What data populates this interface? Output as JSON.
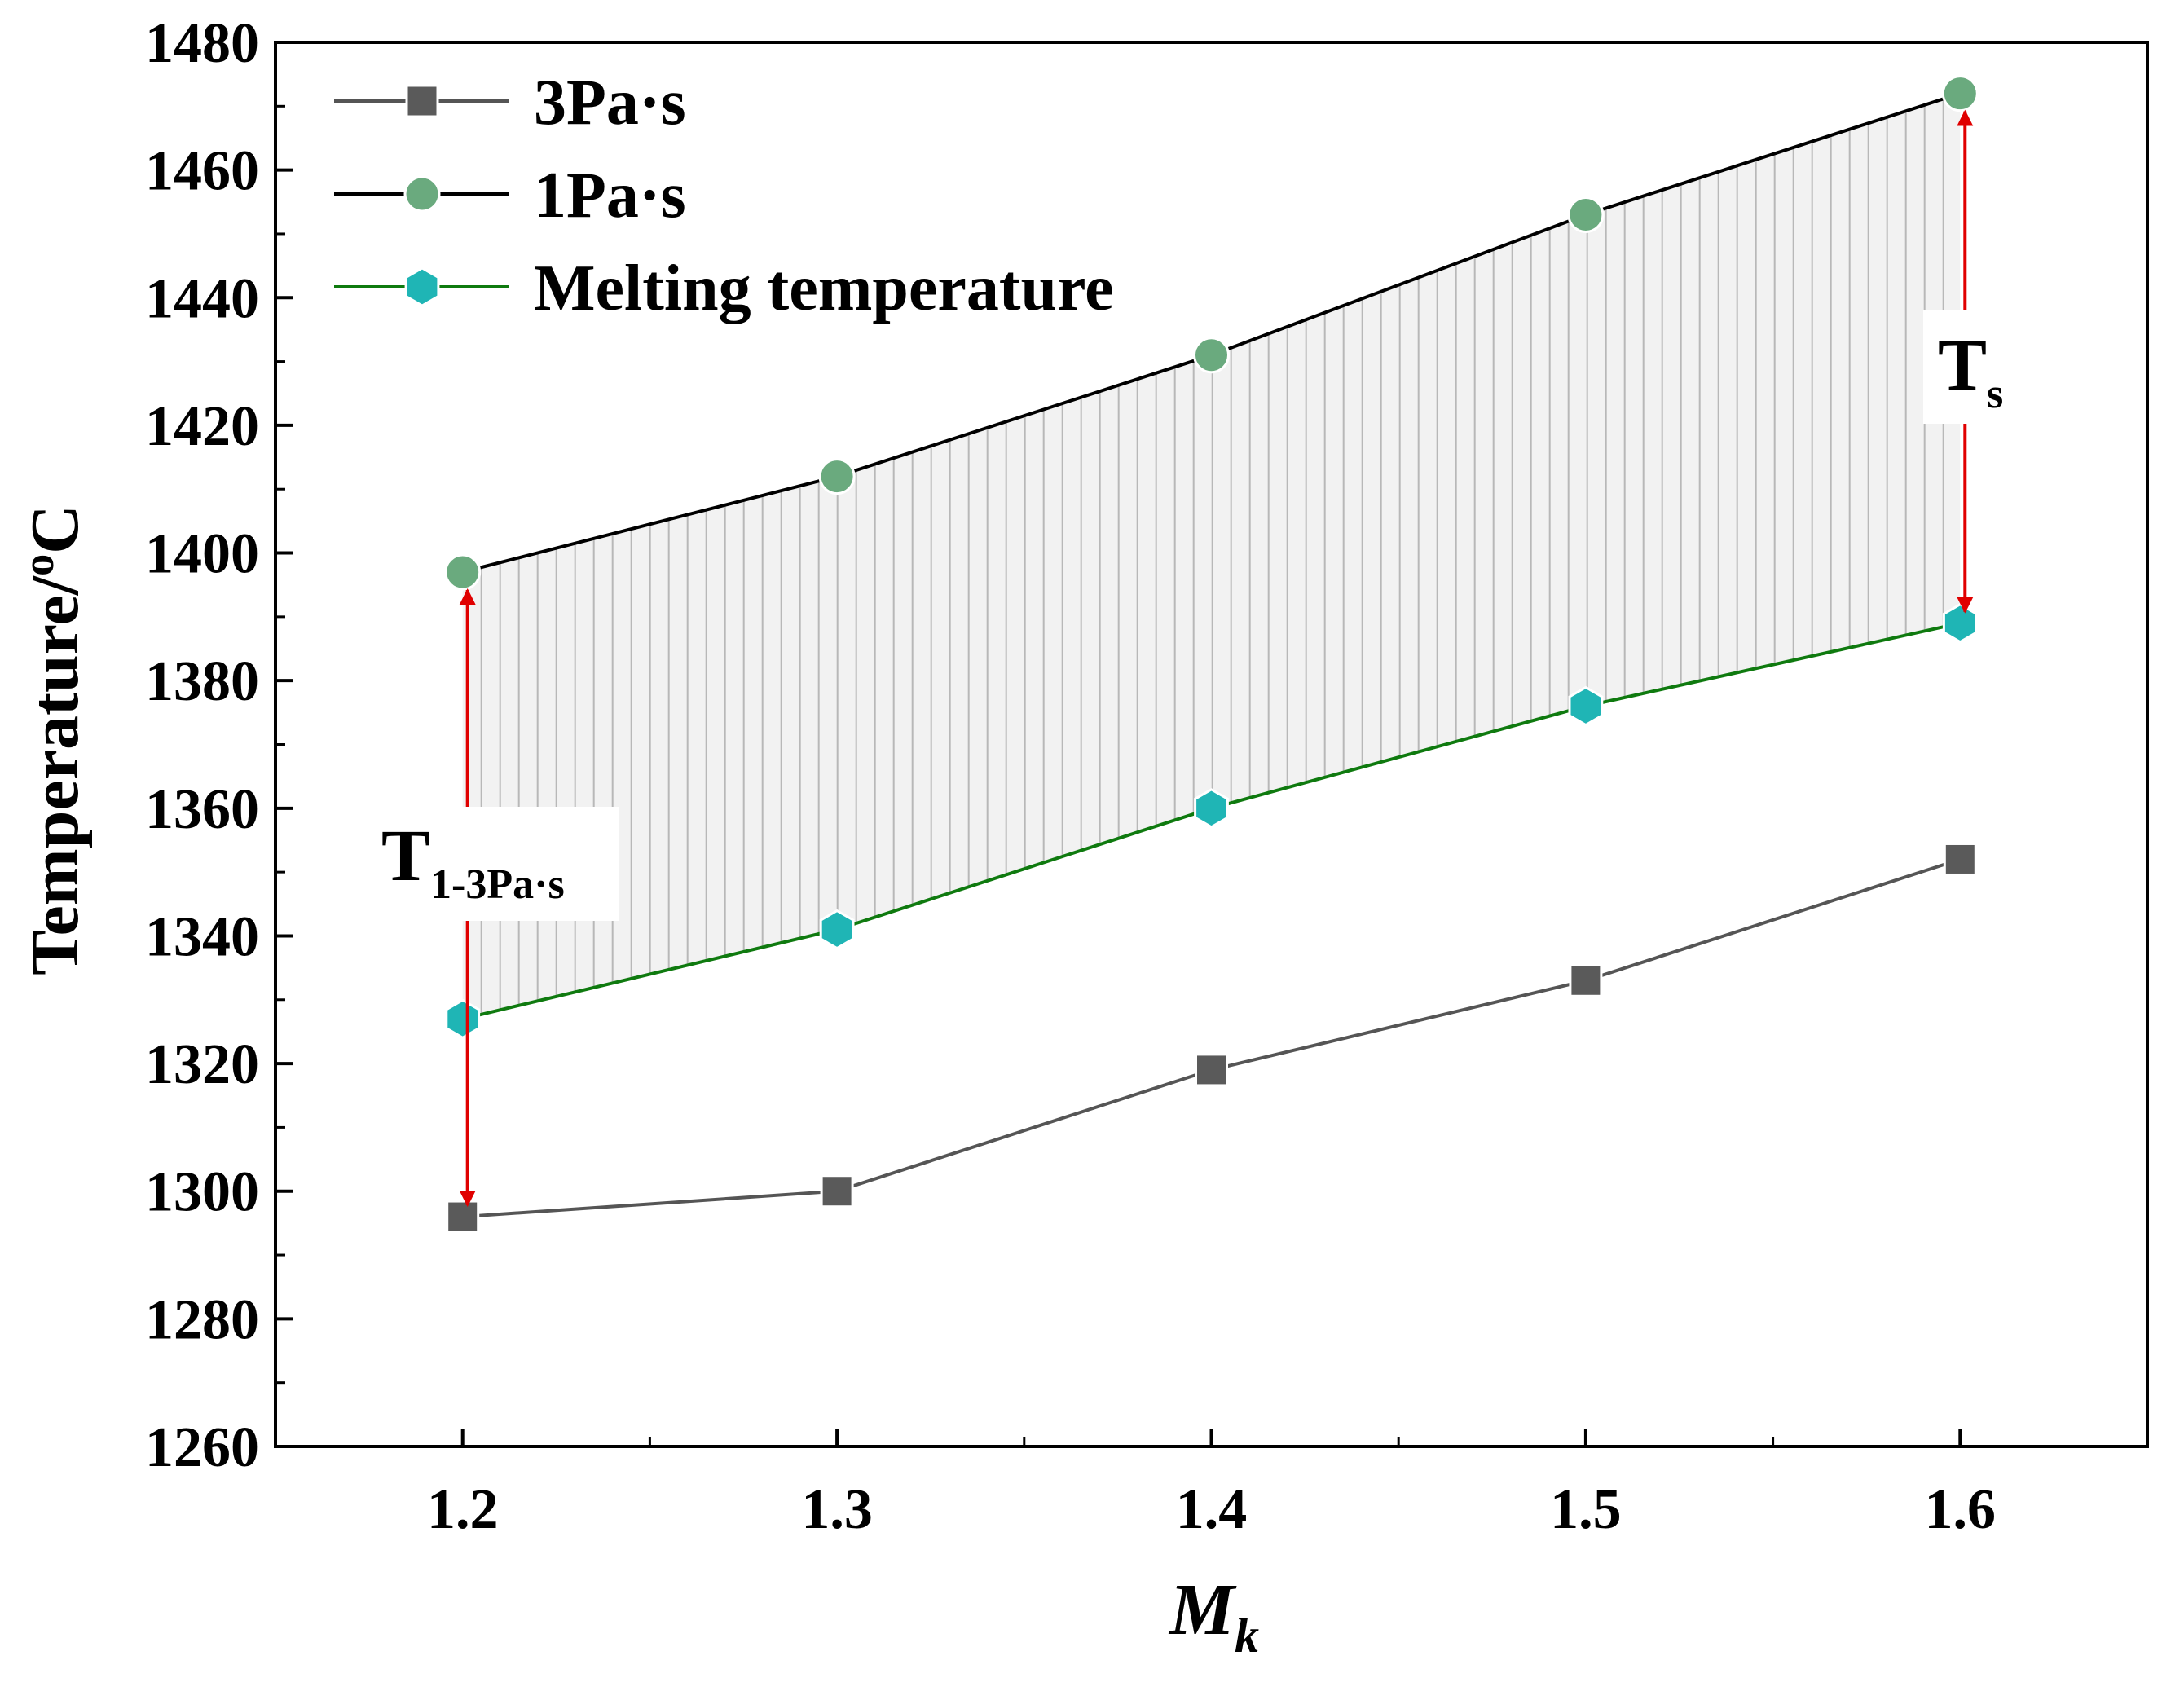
{
  "chart_data": {
    "type": "line",
    "xlabel": "M",
    "xlabel_sub": "k",
    "ylabel": "Temperature/",
    "ylabel_sup": "o",
    "ylabel_unit": "C",
    "x": [
      1.2,
      1.3,
      1.4,
      1.5,
      1.6
    ],
    "xticks": [
      "1.2",
      "1.3",
      "1.4",
      "1.5",
      "1.6"
    ],
    "yticks": [
      "1260",
      "1280",
      "1300",
      "1320",
      "1340",
      "1360",
      "1380",
      "1400",
      "1420",
      "1440",
      "1460",
      "1480"
    ],
    "xlim": [
      1.15,
      1.65
    ],
    "ylim": [
      1260,
      1480
    ],
    "grid": false,
    "legend_position": "top-left",
    "series": [
      {
        "name": "3Pa·s",
        "values": [
          1296,
          1300,
          1319,
          1333,
          1352
        ],
        "color": "#5a5a5a",
        "line_color": "#555555",
        "marker": "square"
      },
      {
        "name": "1Pa·s",
        "values": [
          1397,
          1412,
          1431,
          1453,
          1472
        ],
        "color": "#6aaa7e",
        "line_color": "#000000",
        "marker": "circle"
      },
      {
        "name": "Melting temperature",
        "values": [
          1327,
          1341,
          1360,
          1376,
          1389
        ],
        "color": "#1fb5b5",
        "line_color": "#0f7a0f",
        "marker": "hexagon"
      }
    ],
    "fill_between": {
      "upper": "1Pa·s",
      "lower": "Melting temperature",
      "color": "#f2f2f2",
      "hatch_color": "#b8b8b8"
    },
    "annotations": [
      {
        "main": "T",
        "sub": "s",
        "x": 1.6,
        "from": 1472,
        "to": 1389,
        "arrow_color": "#e00000"
      },
      {
        "main": "T",
        "sub": "1-3Pa·s",
        "x": 1.2,
        "from": 1397,
        "to": 1296,
        "arrow_color": "#e00000"
      }
    ]
  }
}
